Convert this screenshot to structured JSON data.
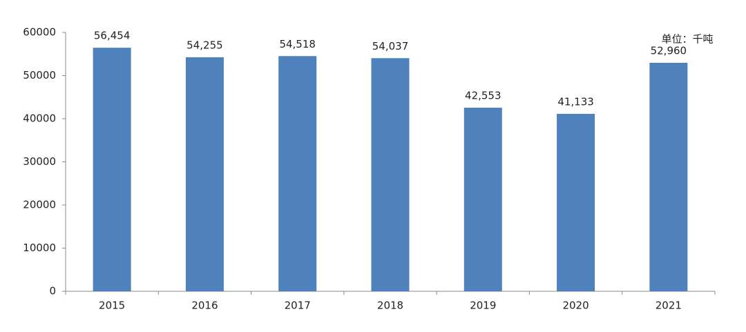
{
  "chart_data": {
    "type": "bar",
    "categories": [
      "2015",
      "2016",
      "2017",
      "2018",
      "2019",
      "2020",
      "2021"
    ],
    "values": [
      56454,
      54255,
      54518,
      54037,
      42553,
      41133,
      52960
    ],
    "value_labels": [
      "56,454",
      "54,255",
      "54,518",
      "54,037",
      "42,553",
      "41,133",
      "52,960"
    ],
    "color": "#4f81bd",
    "ylim": [
      0,
      60000
    ],
    "yticks": [
      0,
      10000,
      20000,
      30000,
      40000,
      50000,
      60000
    ],
    "grid": false,
    "annotation": "单位：千吨"
  }
}
